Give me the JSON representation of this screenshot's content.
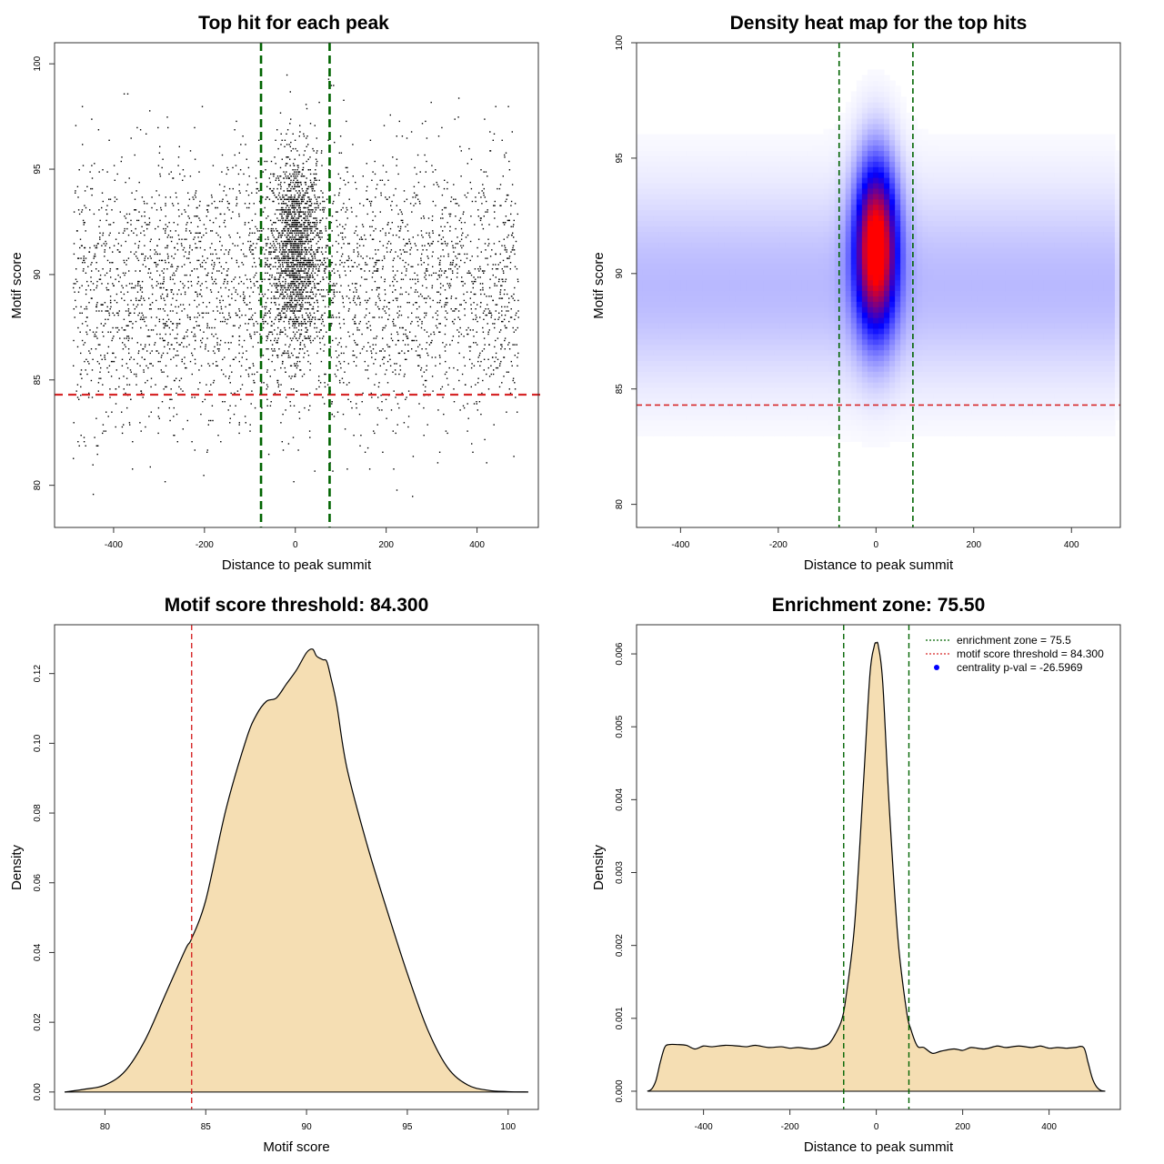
{
  "colors": {
    "threshold": "#d62728",
    "zone": "#006400",
    "fill": "#f5deb3",
    "point": "#000000",
    "heat_low": "#ffffff",
    "heat_mid": "#0000ff",
    "heat_high": "#ff0000",
    "pval_dot": "#0000ff"
  },
  "chart_data": [
    {
      "type": "scatter",
      "title": "Top hit for each peak",
      "xlabel": "Distance to peak summit",
      "ylabel": "Motif score",
      "xlim": [
        -530,
        535
      ],
      "ylim": [
        78,
        101
      ],
      "xticks": [
        -400,
        -200,
        0,
        200,
        400
      ],
      "yticks": [
        80,
        85,
        90,
        95,
        100
      ],
      "xtick_labels": [
        "-400",
        "-200",
        "0",
        "200",
        "400"
      ],
      "ytick_labels": [
        "80",
        "85",
        "90",
        "95",
        "100"
      ],
      "point_count": 5200,
      "background": {
        "x_range": [
          -490,
          490
        ],
        "score_mean": 89.3,
        "score_sd": 3.2
      },
      "central": {
        "x_center": 0,
        "x_sd": 28,
        "score_mean": 91.2,
        "score_sd": 2.3
      },
      "hline": 84.3,
      "vlines": [
        -75.5,
        75.5
      ]
    },
    {
      "type": "heatmap",
      "title": "Density heat map for the top hits",
      "xlabel": "Distance to peak summit",
      "ylabel": "Motif score",
      "xlim": [
        -490,
        500
      ],
      "ylim": [
        79,
        100
      ],
      "xticks": [
        -400,
        -200,
        0,
        200,
        400
      ],
      "yticks": [
        80,
        85,
        90,
        95,
        100
      ],
      "xtick_labels": [
        "-400",
        "-200",
        "0",
        "200",
        "400"
      ],
      "ytick_labels": [
        "80",
        "85",
        "90",
        "95",
        "100"
      ],
      "peak": {
        "x": 0,
        "y": 91.2,
        "x_sd": 30,
        "y_sd": 2.5
      },
      "background": {
        "x_range": [
          -490,
          490
        ],
        "y_mean": 89.5,
        "y_sd": 2.9
      },
      "hline": 84.3,
      "vlines": [
        -75.5,
        75.5
      ]
    },
    {
      "type": "area",
      "title": "Motif score threshold: 84.300",
      "xlabel": "Motif score",
      "ylabel": "Density",
      "xlim": [
        77.5,
        101.5
      ],
      "ylim": [
        -0.005,
        0.134
      ],
      "xticks": [
        80,
        85,
        90,
        95,
        100
      ],
      "yticks": [
        0.0,
        0.02,
        0.04,
        0.06,
        0.08,
        0.1,
        0.12
      ],
      "xtick_labels": [
        "80",
        "85",
        "90",
        "95",
        "100"
      ],
      "ytick_labels": [
        "0.00",
        "0.02",
        "0.04",
        "0.06",
        "0.08",
        "0.10",
        "0.12"
      ],
      "x": [
        78,
        79,
        80,
        81,
        82,
        83,
        84,
        84.3,
        85,
        86,
        87,
        87.5,
        88,
        88.5,
        89,
        89.5,
        90,
        90.3,
        90.5,
        90.8,
        91,
        91.2,
        91.5,
        92,
        93,
        94,
        95,
        96,
        97,
        98,
        99,
        100,
        101
      ],
      "values": [
        0.0,
        0.0008,
        0.002,
        0.006,
        0.015,
        0.028,
        0.041,
        0.044,
        0.055,
        0.081,
        0.101,
        0.108,
        0.112,
        0.113,
        0.117,
        0.121,
        0.126,
        0.127,
        0.125,
        0.124,
        0.1235,
        0.119,
        0.111,
        0.093,
        0.071,
        0.052,
        0.034,
        0.018,
        0.007,
        0.002,
        0.0005,
        0.0001,
        0.0
      ],
      "vline": 84.3
    },
    {
      "type": "area",
      "title": "Enrichment zone: 75.50",
      "xlabel": "Distance to peak summit",
      "ylabel": "Density",
      "xlim": [
        -555,
        565
      ],
      "ylim": [
        -0.00025,
        0.0064
      ],
      "xticks": [
        -400,
        -200,
        0,
        200,
        400
      ],
      "yticks": [
        0.0,
        0.001,
        0.002,
        0.003,
        0.004,
        0.005,
        0.006
      ],
      "xtick_labels": [
        "-400",
        "-200",
        "0",
        "200",
        "400"
      ],
      "ytick_labels": [
        "0.000",
        "0.001",
        "0.002",
        "0.003",
        "0.004",
        "0.005",
        "0.006"
      ],
      "x": [
        -530,
        -520,
        -510,
        -500,
        -490,
        -480,
        -460,
        -440,
        -420,
        -400,
        -380,
        -350,
        -320,
        -300,
        -280,
        -250,
        -220,
        -200,
        -180,
        -150,
        -130,
        -110,
        -95,
        -80,
        -70,
        -50,
        -30,
        -15,
        -5,
        0,
        5,
        15,
        30,
        50,
        70,
        80,
        95,
        110,
        130,
        150,
        180,
        200,
        220,
        250,
        280,
        300,
        330,
        360,
        380,
        400,
        420,
        440,
        460,
        480,
        490,
        500,
        510,
        520,
        530
      ],
      "values": [
        0.0,
        3e-05,
        0.00015,
        0.0004,
        0.0006,
        0.00064,
        0.00064,
        0.00063,
        0.00058,
        0.00062,
        0.00061,
        0.00063,
        0.00062,
        0.00061,
        0.00063,
        0.0006,
        0.00061,
        0.00059,
        0.0006,
        0.00058,
        0.0006,
        0.00065,
        0.00078,
        0.00098,
        0.0013,
        0.0023,
        0.0042,
        0.0057,
        0.0061,
        0.00615,
        0.0061,
        0.0056,
        0.0039,
        0.0021,
        0.0011,
        0.00085,
        0.00062,
        0.0006,
        0.00052,
        0.00055,
        0.00058,
        0.00056,
        0.0006,
        0.00058,
        0.00062,
        0.0006,
        0.00062,
        0.0006,
        0.00062,
        0.00059,
        0.0006,
        0.00059,
        0.0006,
        0.0006,
        0.0004,
        0.00018,
        6e-05,
        1e-05,
        0.0
      ],
      "vlines": [
        -75.5,
        75.5
      ],
      "legend": {
        "position": "top-right",
        "entries": [
          {
            "label": "enrichment zone = 75.5",
            "style": "dotted-green"
          },
          {
            "label": "motif score threshold = 84.300",
            "style": "dotted-red"
          },
          {
            "label": "centrality p-val = -26.5969",
            "style": "blue-dot"
          }
        ]
      }
    }
  ]
}
